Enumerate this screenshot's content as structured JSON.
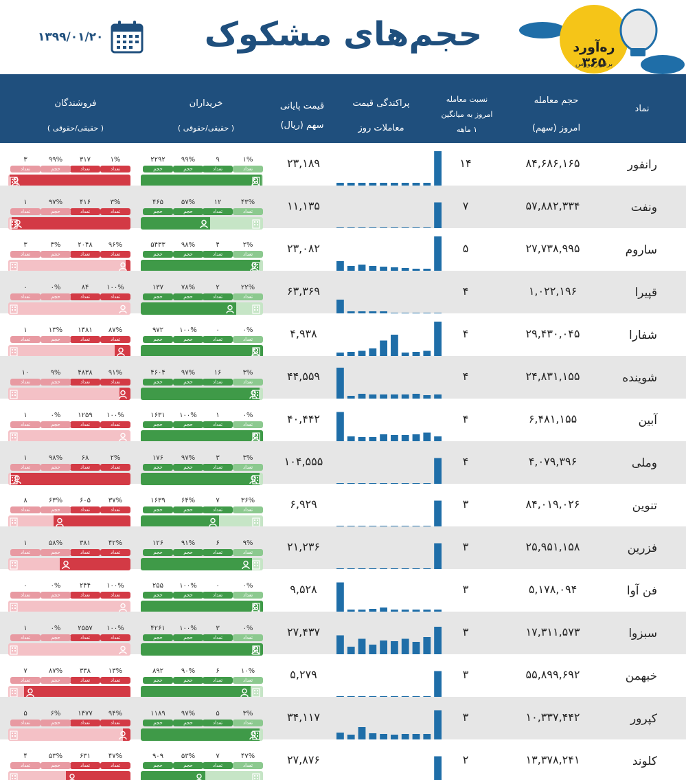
{
  "page": {
    "title": "حجم‌های مشکوک",
    "date": "۱۳۹۹/۰۱/۲۰",
    "logo_text": "ره‌آورد ۳۶۵",
    "logo_sub": "برفراز بورس",
    "colors": {
      "header": "#1f4f7d",
      "sell": "#d33a45",
      "buy": "#3f9a48",
      "sell_light": "#f4c1c6",
      "buy_light": "#c6e5c6",
      "spark": "#1f6ea8",
      "logo": "#f5c518"
    },
    "icons": {
      "calendar": "calendar-icon",
      "logo": "balloon-logo-icon",
      "person": "person-icon",
      "building": "building-icon"
    }
  },
  "header": {
    "symbol": "نماد",
    "volume_1": "حجم معامله",
    "volume_2": "امروز (سهم)",
    "ratio_1": "نسبت معامله",
    "ratio_2": "امروز به میانگین",
    "ratio_3": "۱ ماهه",
    "spread_1": "پراکندگی قیمت",
    "spread_2": "معاملات روز",
    "price_1": "قیمت پایانی",
    "price_2": "سهم (ریال)",
    "buyers_1": "خریداران",
    "buyers_2": "( حقیقی/حقوقی )",
    "sellers_1": "فروشندگان",
    "sellers_2": "( حقیقی/حقوقی )"
  },
  "labels": {
    "count": "تعداد",
    "volume": "حجم"
  },
  "rows": [
    {
      "symbol": "رانفور",
      "volume": "۸۴,۶۸۶,۱۶۵",
      "ratio": "۱۴",
      "price": "۲۳,۱۸۹",
      "spark": [
        0.08,
        0.08,
        0.08,
        0.08,
        0.08,
        0.08,
        0.08,
        0.08,
        0.08,
        1.0
      ],
      "buy": {
        "ind_vol": "۹۹%",
        "ind_cnt": "۲۲۹۲",
        "inst_vol": "۱%",
        "inst_cnt": "۹",
        "ind_share": 0.99
      },
      "sell": {
        "ind_vol": "۹۹%",
        "ind_cnt": "۳",
        "inst_vol": "۱%",
        "inst_cnt": "۳۱۷",
        "ind_share": 0.99
      }
    },
    {
      "symbol": "ونفت",
      "volume": "۵۷,۸۸۲,۳۳۴",
      "ratio": "۷",
      "price": "۱۱,۱۳۵",
      "spark": [
        0,
        0,
        0,
        0,
        0,
        0,
        0,
        0,
        0,
        0.75
      ],
      "buy": {
        "ind_vol": "۵۷%",
        "ind_cnt": "۴۶۵",
        "inst_vol": "۴۳%",
        "inst_cnt": "۱۲",
        "ind_share": 0.57
      },
      "sell": {
        "ind_vol": "۹۷%",
        "ind_cnt": "۱",
        "inst_vol": "۳%",
        "inst_cnt": "۴۱۶",
        "ind_share": 0.97
      }
    },
    {
      "symbol": "ساروم",
      "volume": "۲۷,۷۳۸,۹۹۵",
      "ratio": "۵",
      "price": "۲۳,۰۸۲",
      "spark": [
        0.28,
        0.14,
        0.18,
        0.14,
        0.12,
        0.1,
        0.08,
        0.06,
        0.06,
        1.0
      ],
      "buy": {
        "ind_vol": "۹۸%",
        "ind_cnt": "۵۴۳۳",
        "inst_vol": "۲%",
        "inst_cnt": "۴",
        "ind_share": 0.98
      },
      "sell": {
        "ind_vol": "۴%",
        "ind_cnt": "۳",
        "inst_vol": "۹۶%",
        "inst_cnt": "۲۰۴۸",
        "ind_share": 0.04
      }
    },
    {
      "symbol": "قپیرا",
      "volume": "۱,۰۲۲,۱۹۶",
      "ratio": "۴",
      "price": "۶۳,۳۶۹",
      "spark": [
        0.4,
        0.06,
        0.06,
        0.06,
        0.06,
        0,
        0,
        0,
        0,
        0
      ],
      "buy": {
        "ind_vol": "۷۸%",
        "ind_cnt": "۱۳۷",
        "inst_vol": "۲۲%",
        "inst_cnt": "۲",
        "ind_share": 0.78
      },
      "sell": {
        "ind_vol": "۰%",
        "ind_cnt": "۰",
        "inst_vol": "۱۰۰%",
        "inst_cnt": "۸۴",
        "ind_share": 0.0
      }
    },
    {
      "symbol": "شفارا",
      "volume": "۲۹,۴۳۰,۰۴۵",
      "ratio": "۴",
      "price": "۴,۹۳۸",
      "spark": [
        0.1,
        0.12,
        0.15,
        0.22,
        0.45,
        0.62,
        0.1,
        0.12,
        0.15,
        1.0
      ],
      "buy": {
        "ind_vol": "۱۰۰%",
        "ind_cnt": "۹۷۲",
        "inst_vol": "۰%",
        "inst_cnt": "۰",
        "ind_share": 1.0
      },
      "sell": {
        "ind_vol": "۱۳%",
        "ind_cnt": "۱",
        "inst_vol": "۸۷%",
        "inst_cnt": "۱۴۸۱",
        "ind_share": 0.13
      }
    },
    {
      "symbol": "شوینده",
      "volume": "۲۴,۸۳۱,۱۵۵",
      "ratio": "۴",
      "price": "۴۴,۵۵۹",
      "spark": [
        0.9,
        0.08,
        0.14,
        0.12,
        0.12,
        0.12,
        0.12,
        0.14,
        0.1,
        0.12
      ],
      "buy": {
        "ind_vol": "۹۷%",
        "ind_cnt": "۴۶۰۴",
        "inst_vol": "۳%",
        "inst_cnt": "۱۶",
        "ind_share": 0.97
      },
      "sell": {
        "ind_vol": "۹%",
        "ind_cnt": "۱۰",
        "inst_vol": "۹۱%",
        "inst_cnt": "۴۸۳۸",
        "ind_share": 0.09
      }
    },
    {
      "symbol": "آبین",
      "volume": "۶,۴۸۱,۱۵۵",
      "ratio": "۴",
      "price": "۴۰,۴۴۲",
      "spark": [
        0.85,
        0.14,
        0.12,
        0.12,
        0.2,
        0.18,
        0.18,
        0.2,
        0.25,
        0.14
      ],
      "buy": {
        "ind_vol": "۱۰۰%",
        "ind_cnt": "۱۶۳۱",
        "inst_vol": "۰%",
        "inst_cnt": "۱",
        "ind_share": 1.0
      },
      "sell": {
        "ind_vol": "۰%",
        "ind_cnt": "۱",
        "inst_vol": "۱۰۰%",
        "inst_cnt": "۱۲۵۹",
        "ind_share": 0.0
      }
    },
    {
      "symbol": "وملی",
      "volume": "۴,۰۷۹,۳۹۶",
      "ratio": "۴",
      "price": "۱۰۴,۵۵۵",
      "spark": [
        0,
        0,
        0,
        0,
        0,
        0,
        0,
        0,
        0,
        0.75
      ],
      "buy": {
        "ind_vol": "۹۷%",
        "ind_cnt": "۱۷۶",
        "inst_vol": "۳%",
        "inst_cnt": "۳",
        "ind_share": 0.97
      },
      "sell": {
        "ind_vol": "۹۸%",
        "ind_cnt": "۱",
        "inst_vol": "۲%",
        "inst_cnt": "۶۸",
        "ind_share": 0.98
      }
    },
    {
      "symbol": "تنوین",
      "volume": "۸۴,۰۱۹,۰۲۶",
      "ratio": "۳",
      "price": "۶,۹۲۹",
      "spark": [
        0,
        0,
        0,
        0,
        0,
        0,
        0,
        0,
        0,
        0.75
      ],
      "buy": {
        "ind_vol": "۶۴%",
        "ind_cnt": "۱۶۳۹",
        "inst_vol": "۳۶%",
        "inst_cnt": "۷",
        "ind_share": 0.64
      },
      "sell": {
        "ind_vol": "۶۳%",
        "ind_cnt": "۸",
        "inst_vol": "۳۷%",
        "inst_cnt": "۶۰۵",
        "ind_share": 0.63
      }
    },
    {
      "symbol": "فزرین",
      "volume": "۲۵,۹۵۱,۱۵۸",
      "ratio": "۳",
      "price": "۲۱,۲۳۶",
      "spark": [
        0,
        0,
        0,
        0,
        0,
        0,
        0,
        0,
        0,
        0.75
      ],
      "buy": {
        "ind_vol": "۹۱%",
        "ind_cnt": "۱۲۶",
        "inst_vol": "۹%",
        "inst_cnt": "۶",
        "ind_share": 0.91
      },
      "sell": {
        "ind_vol": "۵۸%",
        "ind_cnt": "۱",
        "inst_vol": "۴۲%",
        "inst_cnt": "۳۸۱",
        "ind_share": 0.58
      }
    },
    {
      "symbol": "فن آوا",
      "volume": "۵,۱۷۸,۰۹۴",
      "ratio": "۳",
      "price": "۹,۵۲۸",
      "spark": [
        0.85,
        0.06,
        0.06,
        0.08,
        0.12,
        0.06,
        0.06,
        0.06,
        0.06,
        0.06
      ],
      "buy": {
        "ind_vol": "۱۰۰%",
        "ind_cnt": "۲۵۵",
        "inst_vol": "۰%",
        "inst_cnt": "۰",
        "ind_share": 1.0
      },
      "sell": {
        "ind_vol": "۰%",
        "ind_cnt": "۰",
        "inst_vol": "۱۰۰%",
        "inst_cnt": "۲۴۴",
        "ind_share": 0.0
      }
    },
    {
      "symbol": "سبزوا",
      "volume": "۱۷,۳۱۱,۵۷۳",
      "ratio": "۳",
      "price": "۲۷,۴۳۷",
      "spark": [
        0.55,
        0.22,
        0.45,
        0.28,
        0.4,
        0.38,
        0.45,
        0.36,
        0.5,
        0.8
      ],
      "buy": {
        "ind_vol": "۱۰۰%",
        "ind_cnt": "۴۲۶۱",
        "inst_vol": "۰%",
        "inst_cnt": "۳",
        "ind_share": 1.0
      },
      "sell": {
        "ind_vol": "۰%",
        "ind_cnt": "۱",
        "inst_vol": "۱۰۰%",
        "inst_cnt": "۲۵۵۷",
        "ind_share": 0.0
      }
    },
    {
      "symbol": "خبهمن",
      "volume": "۵۵,۸۹۹,۶۹۲",
      "ratio": "۳",
      "price": "۵,۲۷۹",
      "spark": [
        0,
        0,
        0,
        0,
        0,
        0,
        0,
        0,
        0,
        0.75
      ],
      "buy": {
        "ind_vol": "۹۰%",
        "ind_cnt": "۸۹۲",
        "inst_vol": "۱۰%",
        "inst_cnt": "۶",
        "ind_share": 0.9
      },
      "sell": {
        "ind_vol": "۸۷%",
        "ind_cnt": "۷",
        "inst_vol": "۱۳%",
        "inst_cnt": "۳۳۸",
        "ind_share": 0.87
      }
    },
    {
      "symbol": "کپرور",
      "volume": "۱۰,۳۳۷,۴۴۲",
      "ratio": "۳",
      "price": "۳۴,۱۱۷",
      "spark": [
        0.2,
        0.14,
        0.36,
        0.18,
        0.16,
        0.14,
        0.16,
        0.16,
        0.16,
        0.85
      ],
      "buy": {
        "ind_vol": "۹۷%",
        "ind_cnt": "۱۱۸۹",
        "inst_vol": "۳%",
        "inst_cnt": "۵",
        "ind_share": 0.97
      },
      "sell": {
        "ind_vol": "۶%",
        "ind_cnt": "۵",
        "inst_vol": "۹۴%",
        "inst_cnt": "۱۴۷۷",
        "ind_share": 0.06
      }
    },
    {
      "symbol": "کلوند",
      "volume": "۱۳,۳۷۸,۲۴۱",
      "ratio": "۲",
      "price": "۲۷,۸۷۶",
      "spark": [
        0.06,
        0.06,
        0.06,
        0.06,
        0,
        0,
        0,
        0,
        0,
        0.75
      ],
      "buy": {
        "ind_vol": "۵۳%",
        "ind_cnt": "۹۰۹",
        "inst_vol": "۴۷%",
        "inst_cnt": "۷",
        "ind_share": 0.53
      },
      "sell": {
        "ind_vol": "۵۳%",
        "ind_cnt": "۴",
        "inst_vol": "۴۷%",
        "inst_cnt": "۶۳۱",
        "ind_share": 0.53
      }
    }
  ]
}
